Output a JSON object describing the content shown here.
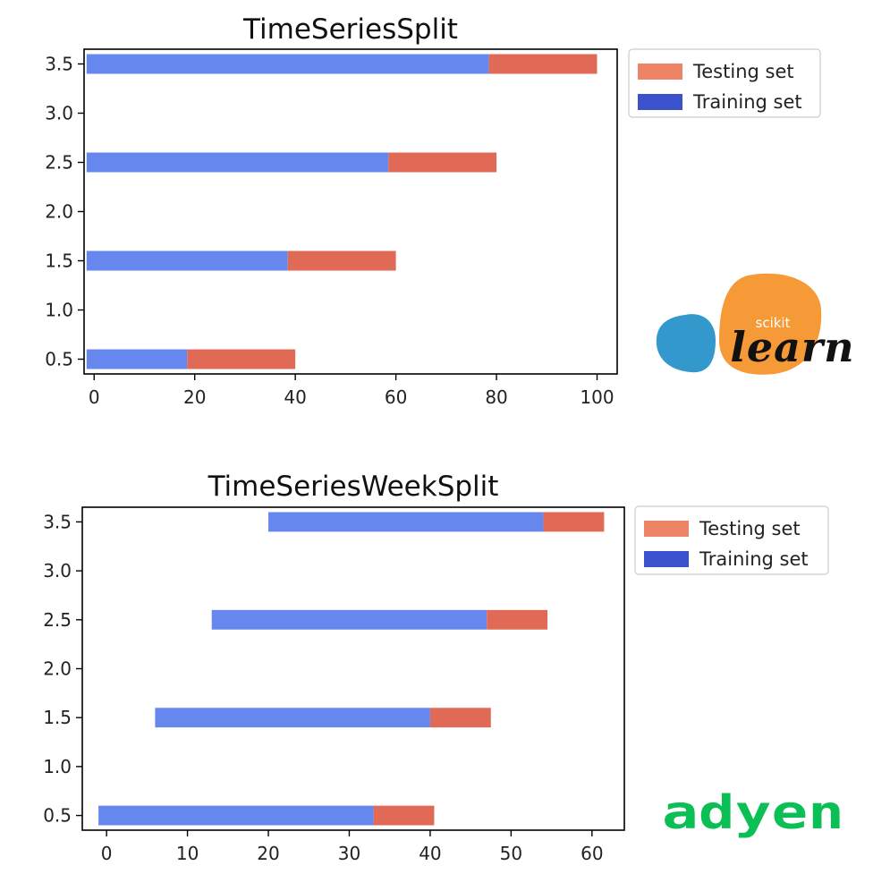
{
  "colors": {
    "train": "#6688ee",
    "test": "#e06a55",
    "legend_train": "#3a52cc",
    "legend_test": "#ee8466",
    "sk_orange": "#f59a36",
    "sk_blue": "#3399cc",
    "adyen_green": "#0abf53"
  },
  "logos": {
    "scikit": {
      "small": "scikit",
      "big": "learn"
    },
    "adyen": {
      "text": "adyen"
    }
  },
  "chart_data": [
    {
      "type": "bar",
      "orientation": "horizontal",
      "title": "TimeSeriesSplit",
      "xlabel": "",
      "ylabel": "",
      "xlim": [
        -2,
        104
      ],
      "ylim": [
        0.35,
        3.65
      ],
      "xticks": [
        0,
        20,
        40,
        60,
        80,
        100
      ],
      "yticks": [
        0.5,
        1.0,
        1.5,
        2.0,
        2.5,
        3.0,
        3.5
      ],
      "legend": {
        "position": "outside-top-right",
        "entries": [
          "Testing set",
          "Training set"
        ]
      },
      "series": [
        {
          "name": "Training set",
          "color": "train",
          "segments": [
            {
              "y": 0.5,
              "start": -1.5,
              "end": 18.5
            },
            {
              "y": 1.5,
              "start": -1.5,
              "end": 38.5
            },
            {
              "y": 2.5,
              "start": -1.5,
              "end": 58.5
            },
            {
              "y": 3.5,
              "start": -1.5,
              "end": 78.5
            }
          ]
        },
        {
          "name": "Testing set",
          "color": "test",
          "segments": [
            {
              "y": 0.5,
              "start": 18.5,
              "end": 40
            },
            {
              "y": 1.5,
              "start": 38.5,
              "end": 60
            },
            {
              "y": 2.5,
              "start": 58.5,
              "end": 80
            },
            {
              "y": 3.5,
              "start": 78.5,
              "end": 100
            }
          ]
        }
      ]
    },
    {
      "type": "bar",
      "orientation": "horizontal",
      "title": "TimeSeriesWeekSplit",
      "xlabel": "",
      "ylabel": "",
      "xlim": [
        -3,
        64
      ],
      "ylim": [
        0.35,
        3.65
      ],
      "xticks": [
        0,
        10,
        20,
        30,
        40,
        50,
        60
      ],
      "yticks": [
        0.5,
        1.0,
        1.5,
        2.0,
        2.5,
        3.0,
        3.5
      ],
      "legend": {
        "position": "outside-top-right",
        "entries": [
          "Testing set",
          "Training set"
        ]
      },
      "series": [
        {
          "name": "Training set",
          "color": "train",
          "segments": [
            {
              "y": 0.5,
              "start": -1,
              "end": 33
            },
            {
              "y": 1.5,
              "start": 6,
              "end": 40
            },
            {
              "y": 2.5,
              "start": 13,
              "end": 47
            },
            {
              "y": 3.5,
              "start": 20,
              "end": 54
            }
          ]
        },
        {
          "name": "Testing set",
          "color": "test",
          "segments": [
            {
              "y": 0.5,
              "start": 33,
              "end": 40.5
            },
            {
              "y": 1.5,
              "start": 40,
              "end": 47.5
            },
            {
              "y": 2.5,
              "start": 47,
              "end": 54.5
            },
            {
              "y": 3.5,
              "start": 54,
              "end": 61.5
            }
          ]
        }
      ]
    }
  ]
}
